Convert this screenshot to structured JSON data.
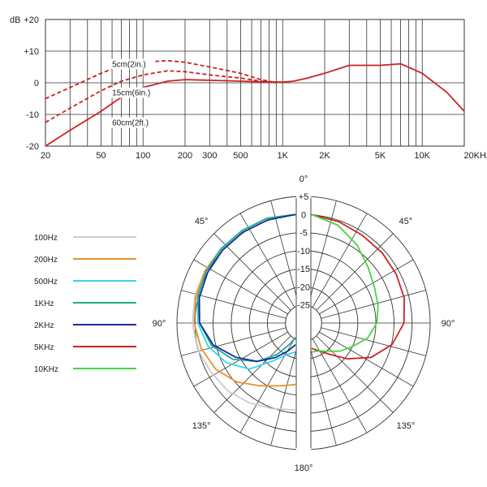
{
  "chart_data": [
    {
      "type": "line",
      "title": "",
      "xlabel": "",
      "ylabel": "dB",
      "xscale": "log",
      "xlim": [
        20,
        20000
      ],
      "ylim": [
        -20,
        20
      ],
      "x_ticks": [
        {
          "v": 20,
          "label": "20"
        },
        {
          "v": 50,
          "label": "50"
        },
        {
          "v": 100,
          "label": "100"
        },
        {
          "v": 200,
          "label": "200"
        },
        {
          "v": 300,
          "label": "300"
        },
        {
          "v": 500,
          "label": "500"
        },
        {
          "v": 1000,
          "label": "1K"
        },
        {
          "v": 2000,
          "label": "2K"
        },
        {
          "v": 5000,
          "label": "5K"
        },
        {
          "v": 10000,
          "label": "10K"
        },
        {
          "v": 20000,
          "label": "20KHz"
        }
      ],
      "y_ticks": [
        {
          "v": 20,
          "label": "+20"
        },
        {
          "v": 10,
          "label": "+10"
        },
        {
          "v": 0,
          "label": "0"
        },
        {
          "v": -10,
          "label": "-10"
        },
        {
          "v": -20,
          "label": "-20"
        }
      ],
      "grid": true,
      "color": "#cc2222",
      "series": [
        {
          "style": "solid",
          "x": [
            20,
            30,
            50,
            70,
            100,
            150,
            200,
            300,
            500,
            700,
            1000,
            1200,
            1500,
            2000,
            3000,
            5000,
            7000,
            10000,
            15000,
            20000
          ],
          "y": [
            -20,
            -15,
            -9,
            -4.5,
            -1.5,
            0.5,
            1,
            0.8,
            0.5,
            0.3,
            0.2,
            0.5,
            1.5,
            3,
            5.5,
            5.5,
            6,
            3,
            -3,
            -9
          ]
        },
        {
          "style": "dashed",
          "x": [
            20,
            30,
            50,
            70,
            100,
            150,
            200,
            300,
            500,
            700,
            900
          ],
          "y": [
            -12.5,
            -8,
            -2.5,
            0.5,
            2.5,
            3.8,
            3.5,
            2.5,
            1.5,
            0.5,
            0
          ]
        },
        {
          "style": "dashed",
          "x": [
            20,
            30,
            50,
            70,
            100,
            150,
            200,
            300,
            500,
            700,
            900
          ],
          "y": [
            -5,
            -1.5,
            3,
            5.5,
            6.5,
            7,
            6.5,
            5,
            3,
            1,
            0
          ]
        }
      ],
      "annotations": [
        {
          "text": "5cm(2in.)",
          "x": 60,
          "y": 5
        },
        {
          "text": "15cm(6in.)",
          "x": 60,
          "y": -4
        },
        {
          "text": "60cm(2ft.)",
          "x": 60,
          "y": -13.5
        }
      ]
    },
    {
      "type": "polar",
      "title": "",
      "r_ticks": [
        {
          "v": 5,
          "label": "+5"
        },
        {
          "v": 0,
          "label": "0"
        },
        {
          "v": -5,
          "label": "-5"
        },
        {
          "v": -10,
          "label": "-10"
        },
        {
          "v": -15,
          "label": "-15"
        },
        {
          "v": -20,
          "label": "-20"
        },
        {
          "v": -25,
          "label": "-25"
        }
      ],
      "rlim": [
        -30,
        5
      ],
      "angle_labels": [
        {
          "deg": 0,
          "label": "0°"
        },
        {
          "deg": 45,
          "label": "45°"
        },
        {
          "deg": 90,
          "label": "90°"
        },
        {
          "deg": 135,
          "label": "135°"
        },
        {
          "deg": 180,
          "label": "180°"
        },
        {
          "deg": 225,
          "label": "135°"
        },
        {
          "deg": 270,
          "label": "90°"
        },
        {
          "deg": 315,
          "label": "45°"
        }
      ],
      "legend_position": "left",
      "series": [
        {
          "name": "100Hz",
          "color": "#cccccc",
          "side": "left",
          "angles": [
            0,
            15,
            30,
            45,
            60,
            75,
            90,
            105,
            120,
            135,
            150,
            165,
            180
          ],
          "values": [
            0,
            0,
            -0.5,
            -0.8,
            -1,
            -1.2,
            -1.5,
            -2,
            -3,
            -3.5,
            -4.5,
            -5.5,
            -6
          ]
        },
        {
          "name": "200Hz",
          "color": "#e8922a",
          "side": "left",
          "angles": [
            0,
            15,
            30,
            45,
            60,
            75,
            90,
            105,
            120,
            135,
            150,
            165,
            180
          ],
          "values": [
            0,
            0,
            -0.5,
            -1,
            -1.2,
            -1.5,
            -2,
            -3,
            -4.5,
            -7,
            -10,
            -12,
            -13
          ]
        },
        {
          "name": "500Hz",
          "color": "#30d8e8",
          "side": "left",
          "angles": [
            0,
            15,
            30,
            45,
            60,
            75,
            90,
            105,
            120,
            135,
            150,
            165,
            180
          ],
          "values": [
            0,
            0,
            -0.5,
            -1,
            -1.5,
            -2,
            -3,
            -5,
            -8,
            -12,
            -18,
            -21,
            -22
          ]
        },
        {
          "name": "1KHz",
          "color": "#1fae85",
          "side": "left",
          "angles": [
            0,
            15,
            30,
            45,
            60,
            75,
            90,
            105,
            120,
            135,
            150,
            165,
            180
          ],
          "values": [
            0,
            0,
            -0.5,
            -1,
            -1.5,
            -2,
            -3.5,
            -6,
            -10,
            -15,
            -20,
            -24,
            -26
          ]
        },
        {
          "name": "2KHz",
          "color": "#1a2a9c",
          "side": "left",
          "angles": [
            0,
            15,
            30,
            45,
            60,
            75,
            90,
            105,
            120,
            135,
            150,
            165,
            180
          ],
          "values": [
            0,
            -0.5,
            -1,
            -1.5,
            -2,
            -2.5,
            -3.5,
            -6.5,
            -11,
            -15,
            -19,
            -22,
            -24
          ]
        },
        {
          "name": "5KHz",
          "color": "#cc2222",
          "side": "right",
          "angles": [
            0,
            15,
            30,
            45,
            60,
            75,
            90,
            105,
            120,
            135,
            150,
            165,
            180
          ],
          "values": [
            0,
            -1,
            -2,
            -2.5,
            -3,
            -3.5,
            -4.5,
            -7,
            -11,
            -16,
            -20,
            -22,
            -23
          ]
        },
        {
          "name": "10KHz",
          "color": "#44d640",
          "side": "right",
          "angles": [
            0,
            15,
            30,
            45,
            60,
            75,
            90,
            105,
            120,
            135,
            150,
            165,
            180
          ],
          "values": [
            0,
            -2,
            -5,
            -8,
            -10,
            -11,
            -12,
            -14,
            -17,
            -19,
            -21,
            -22,
            -22
          ]
        }
      ]
    }
  ]
}
